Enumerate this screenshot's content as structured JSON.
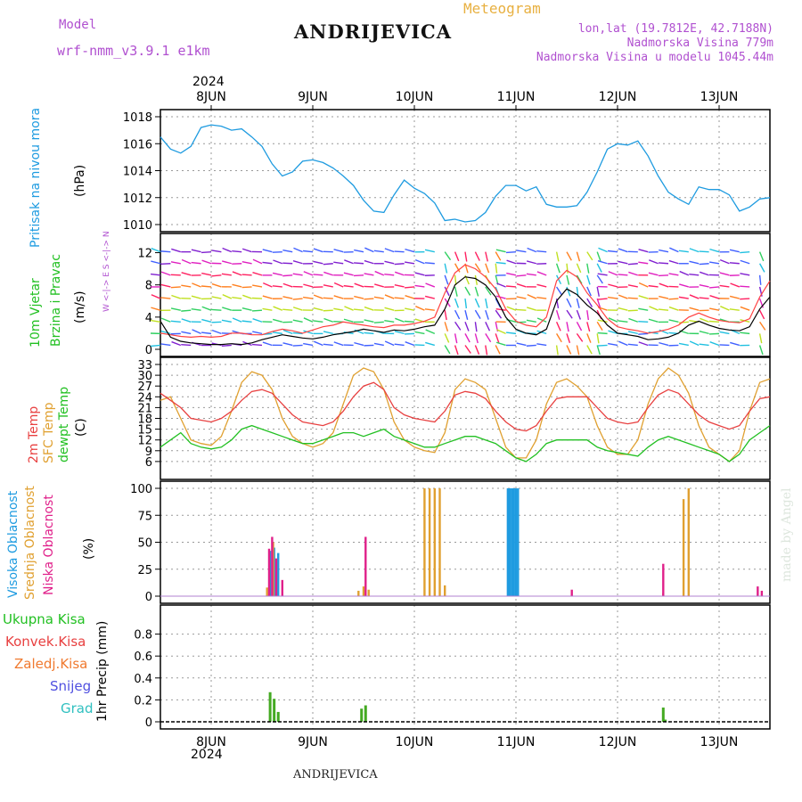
{
  "header": {
    "model_label": "Model",
    "model_name": "wrf-nmm_v3.9.1  e1km",
    "station_title": "ANDRIJEVICA",
    "meteogram_label": "Meteogram",
    "lonlat": "lon,lat (19.7812E, 42.7188N)",
    "elevation": "Nadmorska Visina 779m",
    "model_elevation": "Nadmorska Visina u modelu 1045.44m",
    "year_top": "2024",
    "year_bottom": "2024",
    "footer_station": "ANDRIJEVICA",
    "watermark": "made by Angel"
  },
  "dates": [
    "8JUN",
    "9JUN",
    "10JUN",
    "11JUN",
    "12JUN",
    "13JUN"
  ],
  "panel_labels": {
    "pressure": {
      "title": "Pritisak na nivou mora",
      "unit": "(hPa)"
    },
    "wind": {
      "title1": "10m Vjetar",
      "title2": "Brzina i Pravac",
      "unit": "(m/s)",
      "compass": "W <-|-> E   S <-|-> N"
    },
    "temp": {
      "t2m": "2m Temp",
      "sfc": "SFC Temp",
      "dew": "dewpt Temp",
      "unit": "(C)"
    },
    "cloud": {
      "high": "Visoka Oblacnost",
      "mid": "Srednja Oblacnost",
      "low": "Niska Oblacnost",
      "unit": "(%)"
    },
    "precip": {
      "total": "Ukupna Kisa",
      "conv": "Konvek.Kisa",
      "frozen": "Zaledj.Kisa",
      "snow": "Snijeg",
      "grad": "Grad",
      "unit": "1hr Precip (mm)"
    }
  },
  "colors": {
    "pressure": "#1e9be0",
    "t2m": "#e84040",
    "sfc": "#e0a030",
    "dew": "#22c022",
    "cloud_high": "#1e9be0",
    "cloud_mid": "#e0a030",
    "cloud_low": "#e0208a",
    "precip_total": "#44aa22",
    "precip_conv": "#e84040",
    "precip_frozen": "#f07a30",
    "precip_snow": "#5050e0",
    "precip_grad": "#30c0c0",
    "wind_speed": "#000000",
    "wind_gust": "#ff4040"
  },
  "chart_data": [
    {
      "type": "line",
      "panel": "pressure",
      "x_unit": "days since 8JUN 00UTC",
      "ylim": [
        1010,
        1018
      ],
      "yticks": [
        "1010",
        "1012",
        "1014",
        "1016",
        "1018"
      ],
      "x": [
        -0.5,
        -0.4,
        -0.3,
        -0.2,
        -0.1,
        0,
        0.1,
        0.2,
        0.3,
        0.4,
        0.5,
        0.6,
        0.7,
        0.8,
        0.9,
        1.0,
        1.1,
        1.2,
        1.3,
        1.4,
        1.5,
        1.6,
        1.7,
        1.8,
        1.9,
        2.0,
        2.1,
        2.2,
        2.3,
        2.4,
        2.5,
        2.6,
        2.7,
        2.8,
        2.9,
        3.0,
        3.1,
        3.2,
        3.3,
        3.4,
        3.5,
        3.6,
        3.7,
        3.8,
        3.9,
        4.0,
        4.1,
        4.2,
        4.3,
        4.4,
        4.5,
        4.6,
        4.7,
        4.8,
        4.9,
        5.0,
        5.1,
        5.2,
        5.3,
        5.4,
        5.5
      ],
      "values": [
        1016.5,
        1015.6,
        1015.3,
        1015.8,
        1017.2,
        1017.4,
        1017.3,
        1017.0,
        1017.1,
        1016.5,
        1015.8,
        1014.5,
        1013.6,
        1013.9,
        1014.7,
        1014.8,
        1014.6,
        1014.2,
        1013.6,
        1012.9,
        1011.8,
        1011.0,
        1010.9,
        1012.2,
        1013.3,
        1012.7,
        1012.3,
        1011.6,
        1010.3,
        1010.4,
        1010.2,
        1010.3,
        1010.9,
        1012.1,
        1012.9,
        1012.9,
        1012.5,
        1012.8,
        1011.5,
        1011.3,
        1011.3,
        1011.4,
        1012.4,
        1013.9,
        1015.6,
        1016.0,
        1015.9,
        1016.2,
        1015.1,
        1013.6,
        1012.4,
        1011.9,
        1011.5,
        1012.8,
        1012.6,
        1012.6,
        1012.2,
        1011.0,
        1011.3,
        1011.9,
        1012.0
      ]
    },
    {
      "type": "line",
      "panel": "wind",
      "ylim": [
        0,
        13.5
      ],
      "yticks": [
        "0",
        "4",
        "8",
        "12"
      ],
      "series": [
        {
          "name": "speed",
          "x": [
            -0.5,
            -0.4,
            -0.3,
            -0.2,
            -0.1,
            0,
            0.1,
            0.2,
            0.3,
            0.4,
            0.5,
            0.6,
            0.7,
            0.8,
            0.9,
            1.0,
            1.1,
            1.2,
            1.3,
            1.4,
            1.5,
            1.6,
            1.7,
            1.8,
            1.9,
            2.0,
            2.1,
            2.2,
            2.3,
            2.4,
            2.5,
            2.6,
            2.7,
            2.8,
            2.9,
            3.0,
            3.1,
            3.2,
            3.3,
            3.4,
            3.5,
            3.6,
            3.7,
            3.8,
            3.9,
            4.0,
            4.1,
            4.2,
            4.3,
            4.4,
            4.5,
            4.6,
            4.7,
            4.8,
            4.9,
            5.0,
            5.1,
            5.2,
            5.3,
            5.4,
            5.5
          ],
          "values": [
            3.5,
            1.5,
            1.0,
            0.8,
            0.7,
            0.6,
            0.6,
            0.7,
            0.6,
            0.8,
            1.2,
            1.5,
            1.8,
            1.6,
            1.4,
            1.3,
            1.5,
            1.8,
            2.0,
            2.2,
            2.5,
            2.3,
            2.1,
            2.4,
            2.3,
            2.5,
            2.8,
            3.0,
            5.0,
            8.0,
            9.0,
            8.8,
            8.0,
            6.5,
            4.0,
            2.5,
            2.0,
            1.8,
            2.5,
            6.0,
            7.5,
            6.8,
            5.5,
            4.5,
            3.0,
            2.0,
            1.8,
            1.6,
            1.2,
            1.3,
            1.5,
            2.0,
            3.0,
            3.5,
            3.0,
            2.6,
            2.4,
            2.3,
            2.8,
            5.0,
            6.5
          ]
        },
        {
          "name": "gust",
          "x": [
            -0.5,
            -0.4,
            -0.3,
            -0.2,
            -0.1,
            0,
            0.1,
            0.2,
            0.3,
            0.4,
            0.5,
            0.6,
            0.7,
            0.8,
            0.9,
            1.0,
            1.1,
            1.2,
            1.3,
            1.4,
            1.5,
            1.6,
            1.7,
            1.8,
            1.9,
            2.0,
            2.1,
            2.2,
            2.3,
            2.4,
            2.5,
            2.6,
            2.7,
            2.8,
            2.9,
            3.0,
            3.1,
            3.2,
            3.3,
            3.4,
            3.5,
            3.6,
            3.7,
            3.8,
            3.9,
            4.0,
            4.1,
            4.2,
            4.3,
            4.4,
            4.5,
            4.6,
            4.7,
            4.8,
            4.9,
            5.0,
            5.1,
            5.2,
            5.3,
            5.4,
            5.5
          ],
          "values": [
            2.0,
            1.8,
            1.6,
            1.5,
            1.6,
            1.5,
            1.6,
            2.0,
            2.0,
            1.8,
            1.8,
            2.2,
            2.5,
            2.3,
            2.0,
            2.4,
            2.8,
            3.0,
            3.4,
            3.2,
            3.0,
            2.8,
            2.7,
            3.0,
            3.0,
            3.2,
            3.5,
            4.0,
            7.0,
            9.5,
            10.5,
            10.0,
            9.0,
            7.5,
            5.0,
            3.5,
            3.0,
            2.8,
            4.0,
            8.5,
            9.8,
            9.0,
            7.0,
            5.5,
            3.8,
            2.8,
            2.5,
            2.3,
            2.0,
            2.2,
            2.5,
            3.0,
            4.0,
            4.5,
            4.0,
            3.6,
            3.4,
            3.3,
            3.8,
            6.5,
            8.5
          ]
        }
      ]
    },
    {
      "type": "line",
      "panel": "temperature",
      "ylim": [
        3,
        33
      ],
      "yticks": [
        "6",
        "9",
        "12",
        "15",
        "18",
        "21",
        "24",
        "27",
        "30",
        "33"
      ],
      "series": [
        {
          "name": "2m Temp",
          "x": [
            -0.5,
            -0.4,
            -0.3,
            -0.2,
            -0.1,
            0,
            0.1,
            0.2,
            0.3,
            0.4,
            0.5,
            0.6,
            0.7,
            0.8,
            0.9,
            1.0,
            1.1,
            1.2,
            1.3,
            1.4,
            1.5,
            1.6,
            1.7,
            1.8,
            1.9,
            2.0,
            2.1,
            2.2,
            2.3,
            2.4,
            2.5,
            2.6,
            2.7,
            2.8,
            2.9,
            3.0,
            3.1,
            3.2,
            3.3,
            3.4,
            3.5,
            3.6,
            3.7,
            3.8,
            3.9,
            4.0,
            4.1,
            4.2,
            4.3,
            4.4,
            4.5,
            4.6,
            4.7,
            4.8,
            4.9,
            5.0,
            5.1,
            5.2,
            5.3,
            5.4,
            5.5
          ],
          "values": [
            25,
            23,
            21,
            18,
            17.5,
            17,
            18,
            20,
            23,
            25.5,
            26,
            25,
            22,
            19,
            17,
            16.5,
            16,
            17,
            20,
            24,
            27,
            28,
            26,
            21,
            19,
            18,
            17.5,
            17,
            20,
            24.5,
            25.5,
            25,
            23.5,
            20,
            17,
            15,
            14.5,
            16,
            20,
            23.5,
            24,
            24,
            24,
            21,
            18,
            17,
            16.5,
            17,
            21,
            24.5,
            26,
            25,
            22,
            19,
            17,
            16,
            15,
            16,
            20,
            23.5,
            24
          ]
        },
        {
          "name": "SFC Temp",
          "x": [
            -0.5,
            -0.4,
            -0.3,
            -0.2,
            -0.1,
            0,
            0.1,
            0.2,
            0.3,
            0.4,
            0.5,
            0.6,
            0.7,
            0.8,
            0.9,
            1.0,
            1.1,
            1.2,
            1.3,
            1.4,
            1.5,
            1.6,
            1.7,
            1.8,
            1.9,
            2.0,
            2.1,
            2.2,
            2.3,
            2.4,
            2.5,
            2.6,
            2.7,
            2.8,
            2.9,
            3.0,
            3.1,
            3.2,
            3.3,
            3.4,
            3.5,
            3.6,
            3.7,
            3.8,
            3.9,
            4.0,
            4.1,
            4.2,
            4.3,
            4.4,
            4.5,
            4.6,
            4.7,
            4.8,
            4.9,
            5.0,
            5.1,
            5.2,
            5.3,
            5.4,
            5.5
          ],
          "values": [
            23,
            24,
            18,
            12,
            11,
            10.5,
            13,
            20,
            28,
            31,
            30,
            26,
            18,
            13,
            11,
            10,
            11,
            14,
            22,
            30,
            32,
            31,
            26,
            17,
            12,
            10,
            9,
            8.5,
            14,
            26,
            29,
            28,
            26,
            18,
            10,
            7,
            7,
            12,
            22,
            28,
            29,
            27,
            24,
            16,
            10,
            8,
            8,
            12,
            22,
            29,
            32,
            30,
            25,
            16,
            10,
            8,
            6,
            9,
            20,
            28,
            29
          ]
        },
        {
          "name": "dewpt Temp",
          "x": [
            -0.5,
            -0.4,
            -0.3,
            -0.2,
            -0.1,
            0,
            0.1,
            0.2,
            0.3,
            0.4,
            0.5,
            0.6,
            0.7,
            0.8,
            0.9,
            1.0,
            1.1,
            1.2,
            1.3,
            1.4,
            1.5,
            1.6,
            1.7,
            1.8,
            1.9,
            2.0,
            2.1,
            2.2,
            2.3,
            2.4,
            2.5,
            2.6,
            2.7,
            2.8,
            2.9,
            3.0,
            3.1,
            3.2,
            3.3,
            3.4,
            3.5,
            3.6,
            3.7,
            3.8,
            3.9,
            4.0,
            4.1,
            4.2,
            4.3,
            4.4,
            4.5,
            4.6,
            4.7,
            4.8,
            4.9,
            5.0,
            5.1,
            5.2,
            5.3,
            5.4,
            5.5
          ],
          "values": [
            10,
            12,
            14,
            11,
            10,
            9.5,
            10,
            12,
            15,
            16,
            15,
            14,
            13,
            12,
            11,
            11,
            12,
            13,
            14,
            14,
            13,
            14,
            15,
            13,
            12,
            11,
            10,
            10,
            11,
            12,
            13,
            13,
            12,
            11,
            9,
            7,
            6,
            8,
            11,
            12,
            12,
            12,
            12,
            10,
            9,
            8.5,
            8,
            7.5,
            10,
            12,
            13,
            12,
            11,
            10,
            9,
            8,
            6,
            8,
            12,
            14,
            16
          ]
        }
      ]
    },
    {
      "type": "bar",
      "panel": "cloud",
      "ylim": [
        0,
        100
      ],
      "yticks": [
        "0",
        "25",
        "50",
        "75",
        "100"
      ],
      "series": [
        {
          "name": "Visoka Oblacnost",
          "x": [
            0.58,
            0.62,
            0.66,
            2.92,
            2.94,
            2.96,
            2.98,
            3.0,
            3.02
          ],
          "values": [
            42,
            45,
            40,
            100,
            100,
            100,
            100,
            100,
            100
          ]
        },
        {
          "name": "Srednja Oblacnost",
          "x": [
            0.55,
            0.61,
            1.45,
            1.5,
            1.55,
            2.1,
            2.15,
            2.2,
            2.25,
            2.3,
            4.65,
            4.7,
            4.45
          ],
          "values": [
            8,
            50,
            5,
            9,
            6,
            100,
            100,
            100,
            100,
            10,
            90,
            100,
            3
          ]
        },
        {
          "name": "Niska Oblacnost",
          "x": [
            0.57,
            0.6,
            0.64,
            0.7,
            1.52,
            3.55,
            4.45,
            5.38,
            5.42
          ],
          "values": [
            44,
            55,
            35,
            15,
            55,
            6,
            30,
            9,
            5
          ]
        }
      ]
    },
    {
      "type": "bar",
      "panel": "precip",
      "ylim": [
        0,
        1.0
      ],
      "yticks": [
        "0",
        "0.2",
        "0.4",
        "0.6",
        "0.8"
      ],
      "series": [
        {
          "name": "Ukupna Kisa",
          "x": [
            0.58,
            0.62,
            0.66,
            1.48,
            1.52,
            4.45,
            4.47
          ],
          "values": [
            0.27,
            0.21,
            0.09,
            0.12,
            0.15,
            0.13,
            0.02
          ]
        }
      ]
    }
  ]
}
